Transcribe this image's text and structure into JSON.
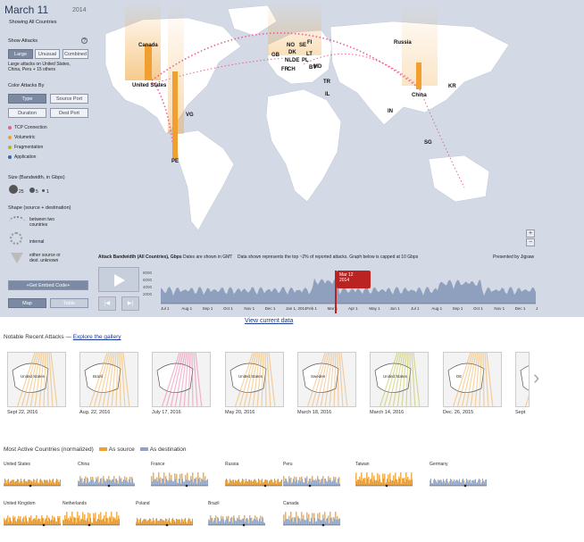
{
  "header": {
    "date": "March 11",
    "year": "2014",
    "subtitle": "Showing All Countries"
  },
  "show_attacks": {
    "heading": "Show Attacks",
    "help": "?",
    "buttons": [
      "Large",
      "Unusual",
      "Combined"
    ],
    "active": "Large",
    "note": "Large attacks on United States, China, Peru + 15 others"
  },
  "color_by": {
    "heading": "Color Attacks By",
    "buttons": [
      "Type",
      "Source Port",
      "Duration",
      "Dest Port"
    ],
    "active": "Type"
  },
  "types": [
    {
      "label": "TCP Connection",
      "color": "#e8609a"
    },
    {
      "label": "Volumetric",
      "color": "#f0a030"
    },
    {
      "label": "Fragmentation",
      "color": "#b4b424"
    },
    {
      "label": "Application",
      "color": "#3a64b0"
    }
  ],
  "size": {
    "heading": "Size (Bandwidth, in Gbps)",
    "values": [
      "25",
      "5",
      "1"
    ]
  },
  "shape": {
    "heading": "Shape (source + destination)",
    "items": [
      "between two countries",
      "internal",
      "either source or dest. unknown"
    ]
  },
  "embed_button": "+Get Embed Code+",
  "view_buttons": [
    "Map",
    "Table"
  ],
  "view_active": "Map",
  "map_labels": [
    {
      "text": "Canada"
    },
    {
      "text": "United States"
    },
    {
      "text": "VG"
    },
    {
      "text": "PE"
    },
    {
      "text": "GB"
    },
    {
      "text": "NO"
    },
    {
      "text": "DK"
    },
    {
      "text": "NL"
    },
    {
      "text": "DE"
    },
    {
      "text": "FR"
    },
    {
      "text": "CH"
    },
    {
      "text": "SE"
    },
    {
      "text": "FI"
    },
    {
      "text": "LT"
    },
    {
      "text": "PL"
    },
    {
      "text": "BY"
    },
    {
      "text": "MD"
    },
    {
      "text": "TR"
    },
    {
      "text": "IL"
    },
    {
      "text": "Russia"
    },
    {
      "text": "China"
    },
    {
      "text": "KR"
    },
    {
      "text": "IN"
    },
    {
      "text": "SG"
    }
  ],
  "zoom": {
    "in": "+",
    "out": "−"
  },
  "timeline": {
    "title": "Attack Bandwidth (All Countries), Gbps",
    "note1": "Dates are shown in GMT",
    "note2": "Data shown represents the top ~2% of reported attacks. Graph below is capped at 10 Gbps",
    "credit": "Presented by Jigsaw",
    "y_ticks": [
      "8000",
      "6000",
      "4000",
      "2000"
    ],
    "months": [
      "Jul 1",
      "Aug 1",
      "Sep 1",
      "Oct 1",
      "Nov 1",
      "Dec 1",
      "Jan 1, 2014",
      "Feb 1",
      "Mar 1",
      "Apr 1",
      "May 1",
      "Jun 1",
      "Jul 1",
      "Aug 1",
      "Sep 1",
      "Oct 1",
      "Nov 1",
      "Dec 1",
      "Jan 1, 20"
    ],
    "callout": [
      "Mar 12",
      "2014"
    ],
    "prev": "|◀",
    "next": "▶|"
  },
  "view_current": "View current data",
  "notable": {
    "label": "Notable Recent Attacks — ",
    "link": "Explore the gallery"
  },
  "gallery": [
    {
      "date": "Sept 22, 2016",
      "color": "#f0a030",
      "tag": "United States"
    },
    {
      "date": "Aug. 22, 2016",
      "color": "#f0a030",
      "tag": "Brazil"
    },
    {
      "date": "July 17, 2016",
      "color": "#e8609a",
      "tag": ""
    },
    {
      "date": "May 20, 2016",
      "color": "#f0a030",
      "tag": "United States"
    },
    {
      "date": "March 18, 2016",
      "color": "#e8a050",
      "tag": "Sweden"
    },
    {
      "date": "March 14, 2016",
      "color": "#b4b424",
      "tag": "United States"
    },
    {
      "date": "Dec. 26, 2015",
      "color": "#f0a030",
      "tag": "DE"
    },
    {
      "date": "Sept",
      "color": "#f0a030",
      "tag": ""
    }
  ],
  "active_countries": {
    "heading": "Most Active Countries (normalized)",
    "source_label": "As source",
    "dest_label": "As destination",
    "source_color": "#f0a030",
    "dest_color": "#8fa4c4",
    "countries": [
      "United States",
      "China",
      "France",
      "Russia",
      "Peru",
      "Taiwan",
      "Germany",
      "United Kingdom",
      "Netherlands",
      "Poland",
      "Brazil",
      "Canada"
    ]
  }
}
